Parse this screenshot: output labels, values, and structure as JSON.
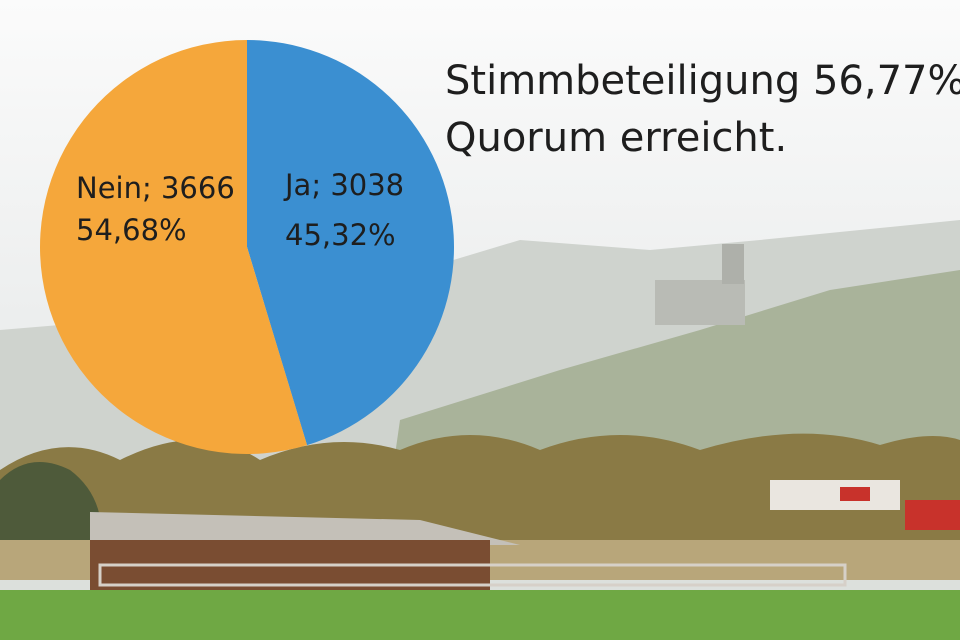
{
  "chart_data": {
    "type": "pie",
    "values": [
      3038,
      3666
    ],
    "value_labels": [
      "Ja; 3038",
      "Nein; 3666"
    ],
    "percent_labels": [
      "45,32%",
      "54,68%"
    ],
    "colors": [
      "#3b8fd1",
      "#f5a73b"
    ],
    "annotations": [
      "Stimmbeteiligung 56,77%",
      "Quorum erreicht."
    ]
  }
}
